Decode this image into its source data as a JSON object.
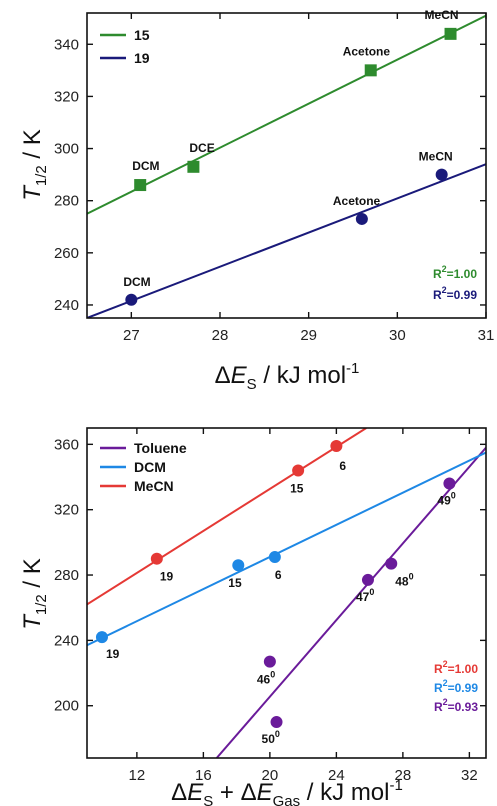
{
  "chart_data": [
    {
      "type": "scatter",
      "xlabel": "ΔE_S / kJ mol^-1",
      "ylabel": "T_1/2 / K",
      "xlim": [
        26.5,
        31
      ],
      "ylim": [
        235,
        352
      ],
      "xticks": [
        27,
        28,
        29,
        30,
        31
      ],
      "yticks": [
        240,
        260,
        280,
        300,
        320,
        340
      ],
      "legend_position": "top-left",
      "series": [
        {
          "name": "15",
          "color": "#2e8b2e",
          "marker": "square",
          "points": [
            {
              "x": 27.1,
              "y": 286,
              "label": "DCM"
            },
            {
              "x": 27.7,
              "y": 293,
              "label": "DCE"
            },
            {
              "x": 29.7,
              "y": 330,
              "label": "Acetone"
            },
            {
              "x": 30.6,
              "y": 344,
              "label": "MeCN"
            }
          ],
          "fit": {
            "x": [
              26.5,
              31
            ],
            "y": [
              275,
              351
            ]
          },
          "r2": "1.00"
        },
        {
          "name": "19",
          "color": "#1a1a7a",
          "marker": "circle",
          "points": [
            {
              "x": 27.0,
              "y": 242,
              "label": "DCM"
            },
            {
              "x": 29.6,
              "y": 273,
              "label": "Acetone"
            },
            {
              "x": 30.5,
              "y": 290,
              "label": "MeCN"
            }
          ],
          "fit": {
            "x": [
              26.5,
              31
            ],
            "y": [
              235,
              294
            ]
          },
          "r2": "0.99"
        }
      ]
    },
    {
      "type": "scatter",
      "xlabel": "ΔE_S + ΔE_Gas / kJ mol^-1",
      "ylabel": "T_1/2 / K",
      "xlim": [
        9,
        33
      ],
      "ylim": [
        168,
        370
      ],
      "xticks": [
        12,
        16,
        20,
        24,
        28,
        32
      ],
      "yticks": [
        200,
        240,
        280,
        320,
        360
      ],
      "legend_position": "top-left",
      "series": [
        {
          "name": "Toluene",
          "color": "#6a1b9a",
          "marker": "circle",
          "points": [
            {
              "x": 20.0,
              "y": 227,
              "label": "46",
              "sup": "0"
            },
            {
              "x": 20.4,
              "y": 190,
              "label": "50",
              "sup": "0"
            },
            {
              "x": 25.9,
              "y": 277,
              "label": "47",
              "sup": "0"
            },
            {
              "x": 27.3,
              "y": 287,
              "label": "48",
              "sup": "0"
            },
            {
              "x": 30.8,
              "y": 336,
              "label": "49",
              "sup": "0"
            }
          ],
          "fit": {
            "x": [
              16.8,
              33
            ],
            "y": [
              168,
              358
            ]
          },
          "r2": "0.93"
        },
        {
          "name": "DCM",
          "color": "#1e88e5",
          "marker": "circle",
          "points": [
            {
              "x": 9.9,
              "y": 242,
              "label": "19"
            },
            {
              "x": 18.1,
              "y": 286,
              "label": "15"
            },
            {
              "x": 20.3,
              "y": 291,
              "label": "6"
            }
          ],
          "fit": {
            "x": [
              9,
              33
            ],
            "y": [
              237,
              355
            ]
          },
          "r2": "0.99"
        },
        {
          "name": "MeCN",
          "color": "#e53935",
          "marker": "circle",
          "points": [
            {
              "x": 13.2,
              "y": 290,
              "label": "19"
            },
            {
              "x": 21.7,
              "y": 344,
              "label": "15"
            },
            {
              "x": 24.0,
              "y": 359,
              "label": "6"
            }
          ],
          "fit": {
            "x": [
              9,
              25.8
            ],
            "y": [
              262,
              370
            ]
          },
          "r2": "1.00"
        }
      ]
    }
  ]
}
